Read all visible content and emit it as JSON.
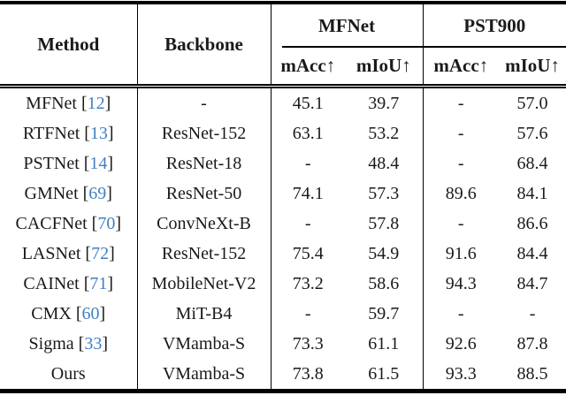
{
  "page": {
    "background": "#ffffff",
    "text_color": "#1a1a1a",
    "rule_color": "#000000",
    "citation_color": "#4080c4"
  },
  "table": {
    "header": {
      "method": "Method",
      "backbone": "Backbone",
      "groups": [
        {
          "label": "MFNet"
        },
        {
          "label": "PST900"
        }
      ],
      "subheaders": [
        "mAcc↑",
        "mIoU↑",
        "mAcc↑",
        "mIoU↑"
      ]
    },
    "citation_brackets": [
      "[",
      "]"
    ],
    "rows": [
      {
        "method": "MFNet",
        "cite": "12",
        "backbone": "-",
        "values": [
          "45.1",
          "39.7",
          "-",
          "57.0"
        ]
      },
      {
        "method": "RTFNet",
        "cite": "13",
        "backbone": "ResNet-152",
        "values": [
          "63.1",
          "53.2",
          "-",
          "57.6"
        ]
      },
      {
        "method": "PSTNet",
        "cite": "14",
        "backbone": "ResNet-18",
        "values": [
          "-",
          "48.4",
          "-",
          "68.4"
        ]
      },
      {
        "method": "GMNet",
        "cite": "69",
        "backbone": "ResNet-50",
        "values": [
          "74.1",
          "57.3",
          "89.6",
          "84.1"
        ]
      },
      {
        "method": "CACFNet",
        "cite": "70",
        "backbone": "ConvNeXt-B",
        "values": [
          "-",
          "57.8",
          "-",
          "86.6"
        ]
      },
      {
        "method": "LASNet",
        "cite": "72",
        "backbone": "ResNet-152",
        "values": [
          "75.4",
          "54.9",
          "91.6",
          "84.4"
        ]
      },
      {
        "method": "CAINet",
        "cite": "71",
        "backbone": "MobileNet-V2",
        "values": [
          "73.2",
          "58.6",
          "94.3",
          "84.7"
        ]
      },
      {
        "method": "CMX",
        "cite": "60",
        "backbone": "MiT-B4",
        "values": [
          "-",
          "59.7",
          "-",
          "-"
        ]
      },
      {
        "method": "Sigma",
        "cite": "33",
        "backbone": "VMamba-S",
        "values": [
          "73.3",
          "61.1",
          "92.6",
          "87.8"
        ]
      },
      {
        "method": "Ours",
        "cite": "",
        "backbone": "VMamba-S",
        "values": [
          "73.8",
          "61.5",
          "93.3",
          "88.5"
        ]
      }
    ]
  }
}
